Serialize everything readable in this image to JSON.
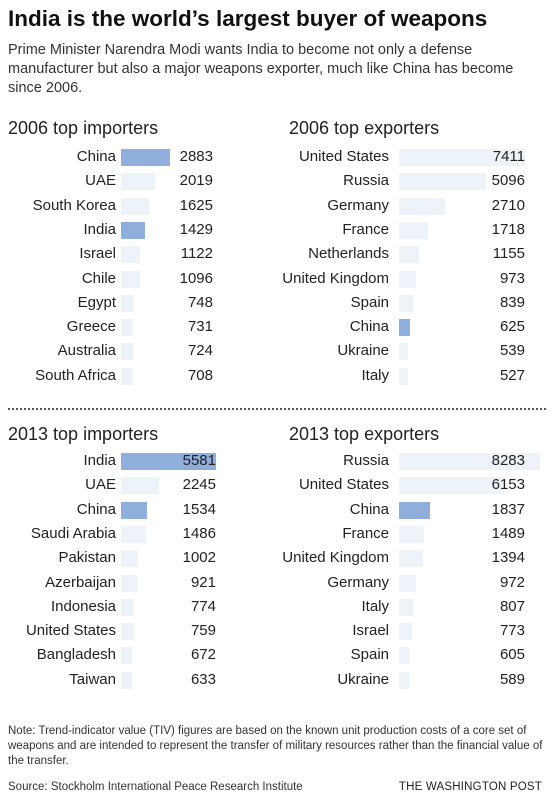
{
  "title": "India is the world’s largest buyer of weapons",
  "subtitle": "Prime Minister Narendra Modi wants India to become not only a defense manufacturer but also a major weapons exporter, much like China has become since 2006.",
  "colors": {
    "bar_default": "#eef2f9",
    "bar_highlight": "#8faedb"
  },
  "chart_data": [
    {
      "type": "bar",
      "title": "2006 top importers",
      "categories": [
        "China",
        "UAE",
        "South Korea",
        "India",
        "Israel",
        "Chile",
        "Egypt",
        "Greece",
        "Australia",
        "South Africa"
      ],
      "values": [
        2883,
        2019,
        1625,
        1429,
        1122,
        1096,
        748,
        731,
        724,
        708
      ],
      "highlight": [
        "China",
        "India"
      ]
    },
    {
      "type": "bar",
      "title": "2006 top exporters",
      "categories": [
        "United States",
        "Russia",
        "Germany",
        "France",
        "Netherlands",
        "United Kingdom",
        "Spain",
        "China",
        "Ukraine",
        "Italy"
      ],
      "values": [
        7411,
        5096,
        2710,
        1718,
        1155,
        973,
        839,
        625,
        539,
        527
      ],
      "highlight": [
        "China"
      ]
    },
    {
      "type": "bar",
      "title": "2013 top importers",
      "categories": [
        "India",
        "UAE",
        "China",
        "Saudi Arabia",
        "Pakistan",
        "Azerbaijan",
        "Indonesia",
        "United States",
        "Bangladesh",
        "Taiwan"
      ],
      "values": [
        5581,
        2245,
        1534,
        1486,
        1002,
        921,
        774,
        759,
        672,
        633
      ],
      "highlight": [
        "India",
        "China"
      ]
    },
    {
      "type": "bar",
      "title": "2013 top exporters",
      "categories": [
        "Russia",
        "United States",
        "China",
        "France",
        "United Kingdom",
        "Germany",
        "Italy",
        "Israel",
        "Spain",
        "Ukraine"
      ],
      "values": [
        8283,
        6153,
        1837,
        1489,
        1394,
        972,
        807,
        773,
        605,
        589
      ],
      "highlight": [
        "China"
      ]
    }
  ],
  "note": "Note: Trend-indicator value (TIV) figures are based on the known unit production costs of a core set of weapons and are intended to represent the transfer of military resources rather than the financial value of the transfer.",
  "source": "Source: Stockholm International Peace Research Institute",
  "credit": "THE WASHINGTON POST"
}
